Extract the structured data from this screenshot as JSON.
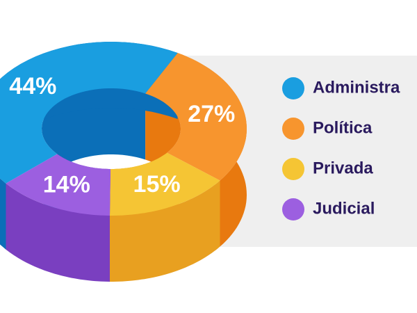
{
  "chart_data": {
    "type": "donut3d",
    "categories": [
      "Administra",
      "Política",
      "Privada",
      "Judicial"
    ],
    "values": [
      44,
      27,
      15,
      14
    ],
    "value_labels": [
      "44%",
      "27%",
      "15%",
      "14%"
    ],
    "colors": [
      "#1a9ee0",
      "#f7952e",
      "#f5c534",
      "#9c5fe0"
    ],
    "side_colors": [
      "#0b6fb8",
      "#e8790f",
      "#e8a020",
      "#7a3fc0"
    ],
    "legend": "right"
  }
}
